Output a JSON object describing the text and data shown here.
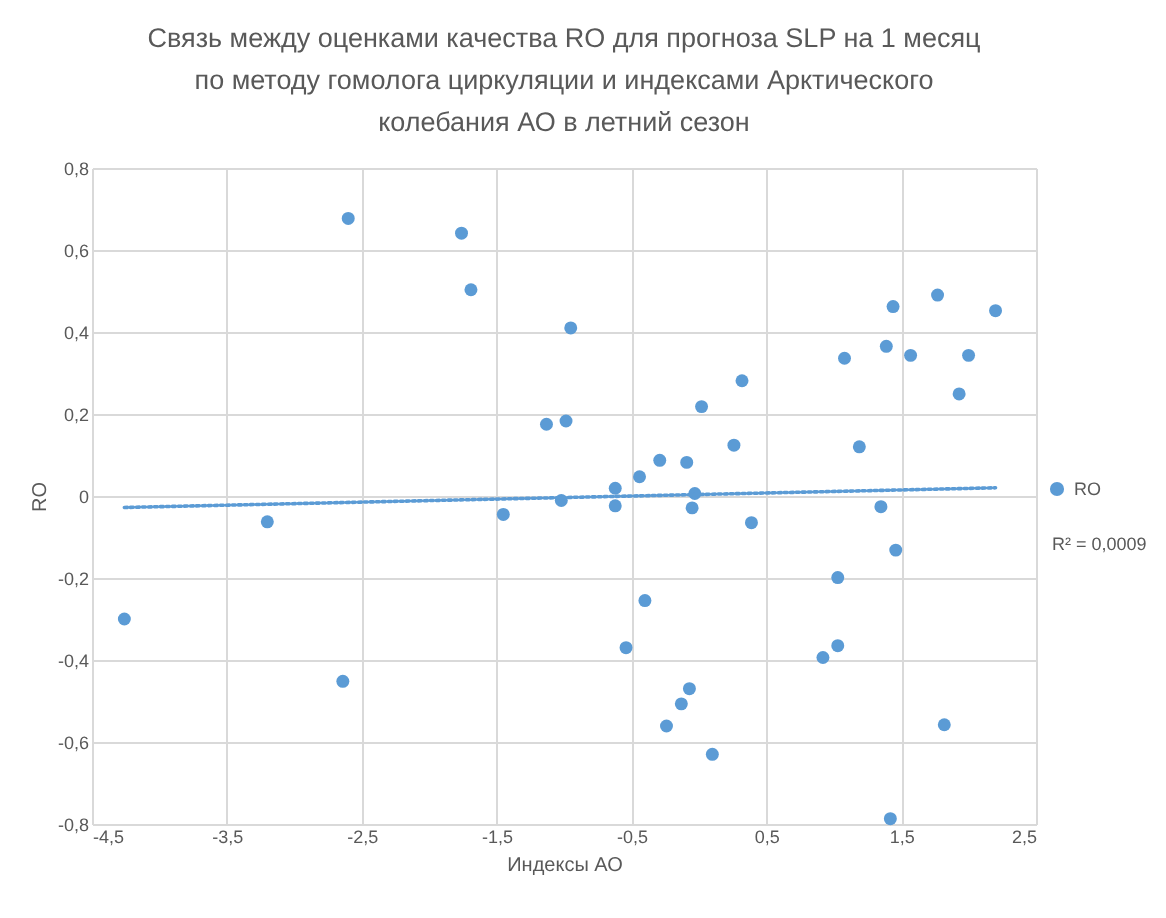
{
  "chart_data": {
    "type": "scatter",
    "title": "Связь между оценками качества RO для прогноза SLP на 1 месяц по методу гомолога циркуляции и индексами Арктического колебания АО в летний сезон",
    "xlabel": "Индексы АО",
    "ylabel": "RO",
    "xlim": [
      -4.5,
      2.5
    ],
    "xticks": [
      {
        "value": -4.5,
        "label": "-4,5"
      },
      {
        "value": -3.5,
        "label": "-3,5"
      },
      {
        "value": -2.5,
        "label": "-2,5"
      },
      {
        "value": -1.5,
        "label": "-1,5"
      },
      {
        "value": -0.5,
        "label": "-0,5"
      },
      {
        "value": 0.5,
        "label": "0,5"
      },
      {
        "value": 1.5,
        "label": "1,5"
      },
      {
        "value": 2.5,
        "label": "2,5"
      }
    ],
    "ylim": [
      -0.8,
      0.8
    ],
    "yticks": [
      {
        "value": -0.8,
        "label": "-0,8"
      },
      {
        "value": -0.6,
        "label": "-0,6"
      },
      {
        "value": -0.4,
        "label": "-0,4"
      },
      {
        "value": -0.2,
        "label": "-0,2"
      },
      0,
      {
        "value": 0.2,
        "label": "0,2"
      },
      {
        "value": 0.4,
        "label": "0,4"
      },
      {
        "value": 0.6,
        "label": "0,6"
      },
      {
        "value": 0.8,
        "label": "0,8"
      }
    ],
    "grid": true,
    "legend": "right",
    "marker": "circle",
    "annotations": [
      "R² = 0,0009"
    ],
    "series": [
      {
        "name": "RO",
        "color": "#5b9bd5",
        "x": [
          -4.26,
          -3.2,
          -2.6,
          -2.64,
          -1.76,
          -1.69,
          -1.45,
          -1.13,
          -0.985,
          -1.02,
          -0.95,
          -0.62,
          -0.62,
          -0.44,
          -0.29,
          -0.09,
          -0.03,
          -0.05,
          0.02,
          0.32,
          0.26,
          0.39,
          -0.4,
          -0.54,
          -0.07,
          -0.13,
          -0.24,
          0.1,
          1.08,
          1.19,
          1.35,
          1.39,
          1.44,
          1.57,
          1.77,
          2.0,
          1.93,
          2.2,
          1.46,
          1.03,
          1.03,
          0.92,
          1.82,
          1.42
        ],
        "values": [
          -0.3,
          -0.063,
          0.677,
          -0.452,
          0.641,
          0.503,
          -0.045,
          0.175,
          0.183,
          -0.011,
          0.41,
          0.019,
          -0.024,
          0.047,
          0.087,
          0.082,
          0.006,
          -0.029,
          0.218,
          0.281,
          0.124,
          -0.065,
          -0.255,
          -0.37,
          -0.47,
          -0.507,
          -0.561,
          -0.63,
          0.336,
          0.12,
          -0.026,
          0.365,
          0.462,
          0.343,
          0.49,
          0.343,
          0.249,
          0.452,
          -0.132,
          -0.199,
          -0.365,
          -0.394,
          -0.558,
          -0.787
        ]
      },
      {
        "type": "line",
        "color": "#5b9bd5",
        "marker": "none",
        "line_style": "dotted",
        "x": [
          -4.26,
          2.2
        ],
        "values": [
          -0.028,
          0.02
        ]
      }
    ]
  }
}
